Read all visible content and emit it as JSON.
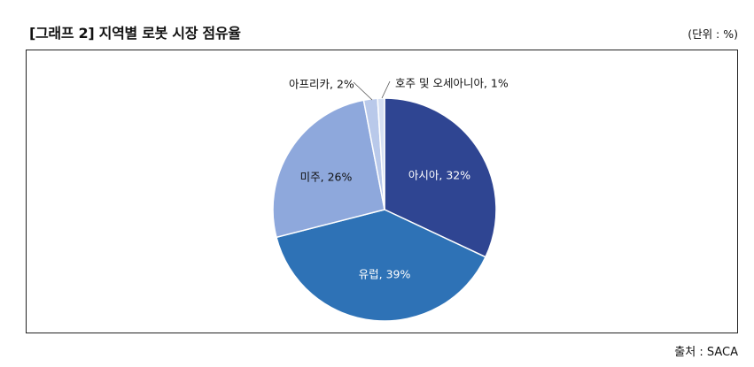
{
  "header": {
    "title": "[그래프 2] 지역별 로봇 시장 점유율",
    "unit": "(단위 : %)"
  },
  "footer": {
    "source": "출처 : SACA"
  },
  "chart_data": {
    "type": "pie",
    "slices": [
      {
        "name": "아시아",
        "value": 32,
        "label": "아시아, 32%",
        "color": "#2f4592"
      },
      {
        "name": "유럽",
        "value": 39,
        "label": "유럽, 39%",
        "color": "#2e72b6"
      },
      {
        "name": "미주",
        "value": 26,
        "label": "미주, 26%",
        "color": "#8ea8dc"
      },
      {
        "name": "아프리카",
        "value": 2,
        "label": "아프리카, 2%",
        "color": "#b9c9ea"
      },
      {
        "name": "호주 및 오세아니아",
        "value": 1,
        "label": "호주 및 오세아니아, 1%",
        "color": "#d6e0f3"
      }
    ]
  }
}
